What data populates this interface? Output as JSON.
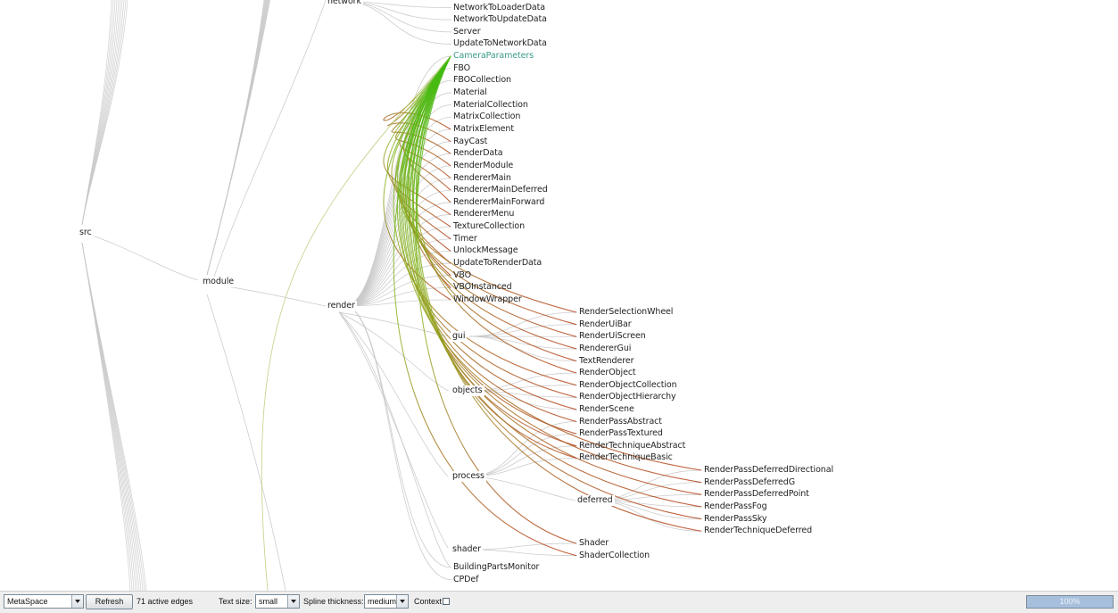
{
  "graph": {
    "groups": {
      "src": "src",
      "module": "module",
      "network": "network",
      "render": "render",
      "gui": "gui",
      "objects": "objects",
      "process": "process",
      "deferred": "deferred",
      "shader": "shader"
    },
    "network_leaves": [
      "NetworkToLoaderData",
      "NetworkToUpdateData",
      "Server",
      "UpdateToNetworkData"
    ],
    "render_leaves": [
      "CameraParameters",
      "FBO",
      "FBOCollection",
      "Material",
      "MaterialCollection",
      "MatrixCollection",
      "MatrixElement",
      "RayCast",
      "RenderData",
      "RenderModule",
      "RendererMain",
      "RendererMainDeferred",
      "RendererMainForward",
      "RendererMenu",
      "TextureCollection",
      "Timer",
      "UnlockMessage",
      "UpdateToRenderData",
      "VBO",
      "VBOInstanced",
      "WindowWrapper"
    ],
    "gui_leaves": [
      "RenderSelectionWheel",
      "RenderUiBar",
      "RenderUiScreen",
      "RendererGui",
      "TextRenderer"
    ],
    "objects_leaves": [
      "RenderObject",
      "RenderObjectCollection",
      "RenderObjectHierarchy",
      "RenderScene"
    ],
    "process_leaves": [
      "RenderPassAbstract",
      "RenderPassTextured",
      "RenderTechniqueAbstract",
      "RenderTechniqueBasic"
    ],
    "deferred_leaves": [
      "RenderPassDeferredDirectional",
      "RenderPassDeferredG",
      "RenderPassDeferredPoint",
      "RenderPassFog",
      "RenderPassSky",
      "RenderTechniqueDeferred"
    ],
    "shader_leaves": [
      "Shader",
      "ShaderCollection"
    ],
    "other_leaves": [
      "BuildingPartsMonitor",
      "CPDef"
    ],
    "selected": "CameraParameters",
    "colors": {
      "tree_edge": "#c8c8c8",
      "selected_text": "#3a9a8a",
      "dep_source": "#3dbb10",
      "dep_target": "#b03a10"
    }
  },
  "toolbar": {
    "view_select": "MetaSpace",
    "refresh_label": "Refresh",
    "active_edges": "71 active edges",
    "text_size_label": "Text size:",
    "text_size_value": "small",
    "spline_label": "Spline thickness:",
    "spline_value": "medium",
    "context_label": "Context",
    "context_checked": false,
    "progress_text": "100%",
    "progress_value": 1.0
  }
}
